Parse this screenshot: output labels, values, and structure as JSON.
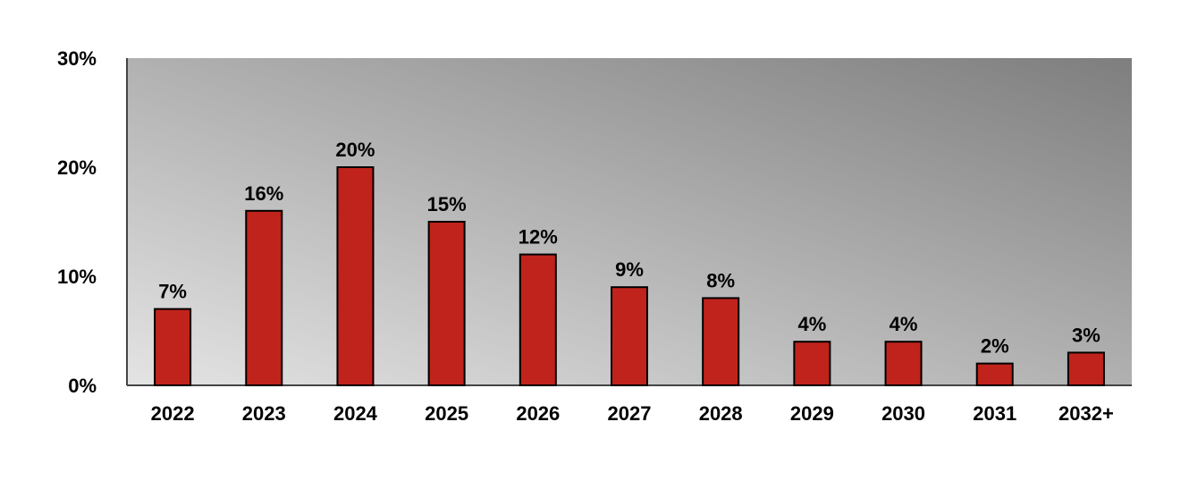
{
  "chart_data": {
    "type": "bar",
    "categories": [
      "2022",
      "2023",
      "2024",
      "2025",
      "2026",
      "2027",
      "2028",
      "2029",
      "2030",
      "2031",
      "2032+"
    ],
    "values": [
      7,
      16,
      20,
      15,
      12,
      9,
      8,
      4,
      4,
      2,
      3
    ],
    "data_labels": [
      "7%",
      "16%",
      "20%",
      "15%",
      "12%",
      "9%",
      "8%",
      "4%",
      "4%",
      "2%",
      "3%"
    ],
    "y_ticks": [
      0,
      10,
      20,
      30
    ],
    "y_tick_labels": [
      "0%",
      "10%",
      "20%",
      "30%"
    ],
    "ylim": [
      0,
      30
    ],
    "grid": false,
    "title": "",
    "xlabel": "",
    "ylabel": "",
    "colors": {
      "bar": "#c0231b",
      "bar_outline": "#000000",
      "plot_bg_light": "#e4e4e4",
      "plot_bg_dark": "#7e7e7e",
      "axis": "#444444"
    }
  }
}
